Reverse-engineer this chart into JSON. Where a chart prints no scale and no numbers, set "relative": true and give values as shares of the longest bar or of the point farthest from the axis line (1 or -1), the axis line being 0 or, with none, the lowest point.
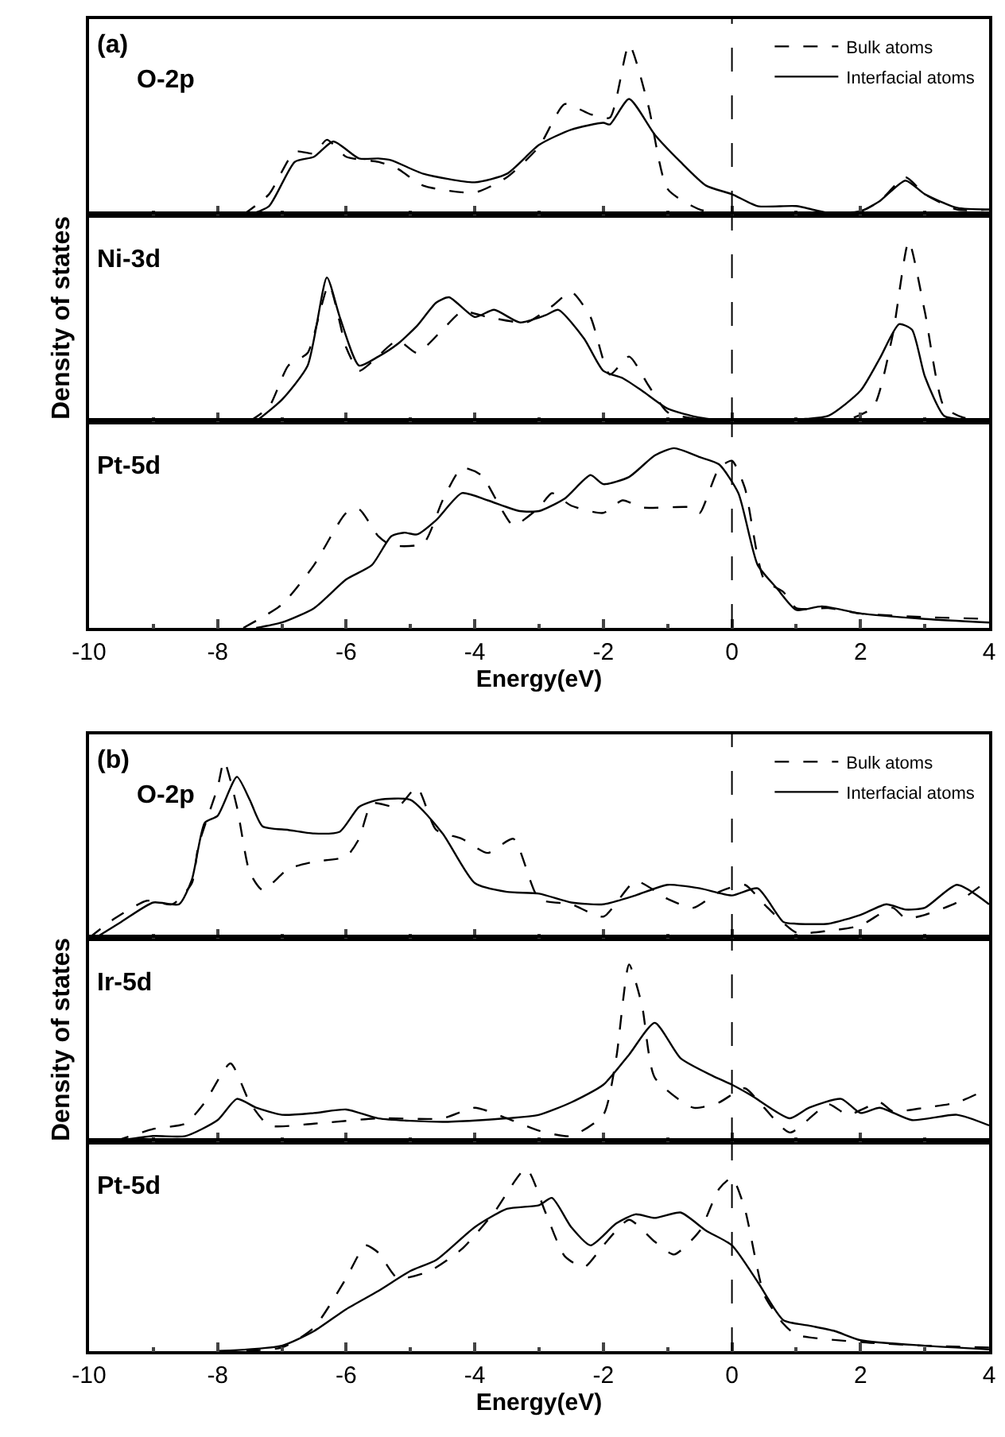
{
  "chart_data": [
    {
      "type": "line",
      "relative": true,
      "annotations": [
        "(a)",
        "O-2p"
      ],
      "xlim": [
        -10,
        4
      ],
      "xticks": [
        -10,
        -8,
        -6,
        -4,
        -2,
        0,
        2,
        4
      ],
      "tick_labels": false,
      "legend": "top right",
      "grid": false,
      "ref_lines": [
        {
          "axis": "x",
          "value": 0,
          "color": "#000000",
          "line_style": "dashed"
        }
      ],
      "series": [
        {
          "name": "Bulk atoms",
          "color": "#000000",
          "line_style": "dashed",
          "x": [
            -7.6,
            -7.2,
            -6.8,
            -6.5,
            -6.3,
            -6.0,
            -5.5,
            -5.2,
            -4.8,
            -4.0,
            -3.5,
            -3.0,
            -2.6,
            -2.2,
            -1.9,
            -1.6,
            -1.3,
            -1.0,
            -0.5,
            0,
            0.5,
            1,
            1.5,
            2,
            2.3,
            2.7,
            3.0,
            3.5,
            4
          ],
          "values": [
            0,
            0.12,
            0.37,
            0.36,
            0.44,
            0.34,
            0.31,
            0.27,
            0.17,
            0.13,
            0.22,
            0.4,
            0.65,
            0.59,
            0.57,
            1.0,
            0.64,
            0.15,
            0.03,
            0.0,
            0.0,
            0.01,
            0.01,
            0.02,
            0.08,
            0.22,
            0.12,
            0.03,
            0.03
          ]
        },
        {
          "name": "Interfacial atoms",
          "color": "#000000",
          "line_style": "solid",
          "x": [
            -7.5,
            -7.2,
            -6.8,
            -6.5,
            -6.2,
            -5.8,
            -5.5,
            -5.3,
            -4.8,
            -4.0,
            -3.5,
            -3.0,
            -2.5,
            -2.0,
            -1.9,
            -1.6,
            -1.2,
            -0.8,
            -0.4,
            0,
            0.4,
            1,
            1.5,
            2,
            2.3,
            2.7,
            3,
            3.5,
            4
          ],
          "values": [
            0,
            0.05,
            0.31,
            0.34,
            0.43,
            0.33,
            0.33,
            0.32,
            0.24,
            0.19,
            0.24,
            0.41,
            0.5,
            0.54,
            0.53,
            0.68,
            0.47,
            0.31,
            0.17,
            0.12,
            0.05,
            0.05,
            0.01,
            0.02,
            0.08,
            0.2,
            0.12,
            0.04,
            0.03
          ]
        }
      ]
    },
    {
      "type": "line",
      "relative": true,
      "annotations": [
        "Ni-3d"
      ],
      "ylabel": "Density of states",
      "xlim": [
        -10,
        4
      ],
      "xticks": [
        -10,
        -8,
        -6,
        -4,
        -2,
        0,
        2,
        4
      ],
      "tick_labels": false,
      "grid": false,
      "ref_lines": [
        {
          "axis": "x",
          "value": 0,
          "color": "#000000",
          "line_style": "dashed"
        }
      ],
      "series": [
        {
          "color": "#000000",
          "line_style": "dashed",
          "x": [
            -7.5,
            -7.2,
            -6.9,
            -6.6,
            -6.27,
            -6.0,
            -5.8,
            -5.6,
            -5.2,
            -4.9,
            -4.5,
            -4.2,
            -3.8,
            -3.2,
            -2.8,
            -2.5,
            -2.2,
            -1.9,
            -1.6,
            -1.3,
            -1.0,
            -0.5,
            0,
            1,
            1.8,
            2.2,
            2.5,
            2.75,
            3.0,
            3.3,
            3.6,
            4
          ],
          "values": [
            0,
            0.08,
            0.31,
            0.38,
            0.76,
            0.41,
            0.28,
            0.33,
            0.45,
            0.38,
            0.51,
            0.61,
            0.58,
            0.55,
            0.64,
            0.72,
            0.58,
            0.26,
            0.36,
            0.2,
            0.05,
            0.01,
            0.0,
            0.0,
            0.01,
            0.08,
            0.48,
            1.0,
            0.61,
            0.08,
            0.02,
            0.01
          ]
        },
        {
          "color": "#000000",
          "line_style": "solid",
          "x": [
            -7.4,
            -7.0,
            -6.6,
            -6.3,
            -6.1,
            -5.8,
            -5.5,
            -5.2,
            -4.9,
            -4.6,
            -4.4,
            -4.0,
            -3.7,
            -3.3,
            -2.9,
            -2.7,
            -2.3,
            -2.0,
            -1.7,
            -1.4,
            -1.0,
            -0.5,
            0,
            1,
            1.5,
            2.0,
            2.3,
            2.6,
            2.8,
            3.0,
            3.3,
            3.6,
            4
          ],
          "values": [
            0,
            0.12,
            0.31,
            0.8,
            0.58,
            0.31,
            0.36,
            0.43,
            0.53,
            0.66,
            0.69,
            0.58,
            0.62,
            0.55,
            0.59,
            0.62,
            0.46,
            0.28,
            0.24,
            0.17,
            0.07,
            0.02,
            0.0,
            0.01,
            0.03,
            0.17,
            0.35,
            0.54,
            0.51,
            0.25,
            0.03,
            0.01,
            0.01
          ]
        }
      ]
    },
    {
      "type": "line",
      "relative": true,
      "annotations": [
        "Pt-5d"
      ],
      "xlabel": "Energy(eV)",
      "xlim": [
        -10,
        4
      ],
      "xticks": [
        -10,
        -8,
        -6,
        -4,
        -2,
        0,
        2,
        4
      ],
      "grid": false,
      "ref_lines": [
        {
          "axis": "x",
          "value": 0,
          "color": "#000000",
          "line_style": "dashed"
        }
      ],
      "series": [
        {
          "color": "#000000",
          "line_style": "dashed",
          "x": [
            -7.6,
            -7.0,
            -6.5,
            -6.0,
            -5.8,
            -5.5,
            -5.3,
            -4.8,
            -4.5,
            -4.2,
            -3.9,
            -3.6,
            -3.4,
            -3.0,
            -2.8,
            -2.5,
            -2.0,
            -1.7,
            -1.4,
            -0.6,
            -0.5,
            -0.2,
            0,
            0.2,
            0.5,
            0.8,
            1.0,
            1.5,
            2.0,
            3,
            4
          ],
          "values": [
            0,
            0.13,
            0.35,
            0.64,
            0.66,
            0.51,
            0.46,
            0.47,
            0.71,
            0.89,
            0.85,
            0.67,
            0.57,
            0.67,
            0.75,
            0.68,
            0.64,
            0.71,
            0.67,
            0.67,
            0.64,
            0.89,
            0.93,
            0.78,
            0.27,
            0.2,
            0.11,
            0.11,
            0.08,
            0.06,
            0.05
          ]
        },
        {
          "color": "#000000",
          "line_style": "solid",
          "x": [
            -7.4,
            -7.0,
            -6.5,
            -6.0,
            -5.6,
            -5.3,
            -5.1,
            -4.9,
            -4.6,
            -4.2,
            -3.8,
            -3.3,
            -3.0,
            -2.6,
            -2.2,
            -2.0,
            -1.6,
            -1.2,
            -0.9,
            -0.5,
            -0.2,
            0.1,
            0.4,
            0.7,
            1.0,
            1.4,
            2.0,
            3,
            4
          ],
          "values": [
            0,
            0.03,
            0.11,
            0.27,
            0.35,
            0.51,
            0.53,
            0.52,
            0.6,
            0.75,
            0.71,
            0.65,
            0.65,
            0.72,
            0.85,
            0.8,
            0.84,
            0.96,
            1.0,
            0.95,
            0.91,
            0.75,
            0.35,
            0.22,
            0.1,
            0.12,
            0.08,
            0.05,
            0.03
          ]
        }
      ]
    },
    {
      "type": "line",
      "relative": true,
      "annotations": [
        "(b)",
        "O-2p"
      ],
      "xlim": [
        -10,
        4
      ],
      "xticks": [
        -10,
        -8,
        -6,
        -4,
        -2,
        0,
        2,
        4
      ],
      "tick_labels": false,
      "legend": "top right",
      "grid": false,
      "ref_lines": [
        {
          "axis": "x",
          "value": 0,
          "color": "#000000",
          "line_style": "dashed"
        }
      ],
      "series": [
        {
          "name": "Bulk atoms",
          "color": "#000000",
          "line_style": "dashed",
          "x": [
            -10,
            -9.6,
            -9.1,
            -8.7,
            -8.4,
            -8.3,
            -8.0,
            -7.9,
            -7.7,
            -7.5,
            -7.3,
            -6.9,
            -6.5,
            -6.0,
            -5.8,
            -5.6,
            -5.2,
            -4.9,
            -4.6,
            -4.2,
            -3.8,
            -3.4,
            -3.0,
            -2.5,
            -2.0,
            -1.5,
            -1.0,
            -0.6,
            -0.2,
            0.2,
            0.5,
            1.0,
            1.5,
            2.0,
            2.5,
            2.7,
            3.0,
            3.5,
            4.0
          ],
          "values": [
            0,
            0.11,
            0.21,
            0.19,
            0.31,
            0.52,
            0.85,
            1.0,
            0.74,
            0.37,
            0.27,
            0.39,
            0.43,
            0.46,
            0.56,
            0.76,
            0.74,
            0.85,
            0.61,
            0.56,
            0.48,
            0.56,
            0.22,
            0.19,
            0.12,
            0.32,
            0.22,
            0.17,
            0.26,
            0.3,
            0.19,
            0.03,
            0.04,
            0.07,
            0.17,
            0.11,
            0.13,
            0.2,
            0.33
          ]
        },
        {
          "name": "Interfacial atoms",
          "color": "#000000",
          "line_style": "solid",
          "x": [
            -9.9,
            -9.5,
            -9.0,
            -8.6,
            -8.4,
            -8.2,
            -8.0,
            -7.7,
            -7.5,
            -7.3,
            -6.9,
            -6.5,
            -6.1,
            -5.8,
            -5.5,
            -5.0,
            -4.5,
            -4.0,
            -3.5,
            -3.0,
            -2.5,
            -2.0,
            -1.5,
            -1.0,
            -0.5,
            0,
            0.4,
            0.8,
            1.0,
            1.5,
            2.0,
            2.4,
            2.7,
            3.0,
            3.5,
            4.0
          ],
          "values": [
            0,
            0.09,
            0.2,
            0.19,
            0.33,
            0.65,
            0.69,
            0.91,
            0.78,
            0.63,
            0.61,
            0.59,
            0.6,
            0.74,
            0.78,
            0.78,
            0.59,
            0.31,
            0.26,
            0.25,
            0.2,
            0.19,
            0.24,
            0.3,
            0.28,
            0.24,
            0.28,
            0.09,
            0.08,
            0.08,
            0.13,
            0.19,
            0.16,
            0.17,
            0.3,
            0.19
          ]
        }
      ]
    },
    {
      "type": "line",
      "relative": true,
      "annotations": [
        "Ir-5d"
      ],
      "ylabel": "Density of states",
      "xlim": [
        -10,
        4
      ],
      "xticks": [
        -10,
        -8,
        -6,
        -4,
        -2,
        0,
        2,
        4
      ],
      "tick_labels": false,
      "grid": false,
      "ref_lines": [
        {
          "axis": "x",
          "value": 0,
          "color": "#000000",
          "line_style": "dashed"
        }
      ],
      "series": [
        {
          "color": "#000000",
          "line_style": "dashed",
          "x": [
            -9.6,
            -9.0,
            -8.5,
            -8.2,
            -7.8,
            -7.5,
            -7.2,
            -6.5,
            -5.5,
            -4.5,
            -4.0,
            -3.5,
            -3.0,
            -2.5,
            -2.0,
            -1.8,
            -1.6,
            -1.4,
            -1.2,
            -0.6,
            -0.2,
            0.2,
            0.5,
            0.9,
            1.5,
            1.8,
            2.3,
            2.5,
            3.0,
            3.5,
            4.0
          ],
          "values": [
            0,
            0.07,
            0.1,
            0.22,
            0.44,
            0.22,
            0.09,
            0.1,
            0.13,
            0.13,
            0.19,
            0.13,
            0.06,
            0.03,
            0.15,
            0.47,
            1.0,
            0.77,
            0.36,
            0.19,
            0.22,
            0.3,
            0.19,
            0.05,
            0.21,
            0.15,
            0.22,
            0.17,
            0.19,
            0.22,
            0.3
          ]
        },
        {
          "color": "#000000",
          "line_style": "solid",
          "x": [
            -9.6,
            -9.0,
            -8.5,
            -8.0,
            -7.7,
            -7.4,
            -7.0,
            -6.5,
            -6.0,
            -5.5,
            -4.5,
            -3.5,
            -3.0,
            -2.5,
            -2.0,
            -1.6,
            -1.2,
            -0.8,
            -0.3,
            0,
            0.3,
            0.9,
            1.2,
            1.7,
            2.0,
            2.3,
            2.8,
            3.5,
            4.0
          ],
          "values": [
            0,
            0.03,
            0.03,
            0.12,
            0.24,
            0.19,
            0.15,
            0.16,
            0.18,
            0.13,
            0.11,
            0.13,
            0.15,
            0.22,
            0.32,
            0.49,
            0.67,
            0.47,
            0.37,
            0.32,
            0.26,
            0.13,
            0.19,
            0.24,
            0.16,
            0.19,
            0.12,
            0.15,
            0.09
          ]
        }
      ]
    },
    {
      "type": "line",
      "relative": true,
      "annotations": [
        "Pt-5d"
      ],
      "xlabel": "Energy(eV)",
      "xlim": [
        -10,
        4
      ],
      "xticks": [
        -10,
        -8,
        -6,
        -4,
        -2,
        0,
        2,
        4
      ],
      "grid": false,
      "ref_lines": [
        {
          "axis": "x",
          "value": 0,
          "color": "#000000",
          "line_style": "dashed"
        }
      ],
      "series": [
        {
          "color": "#000000",
          "line_style": "dashed",
          "x": [
            -8,
            -7,
            -6.5,
            -6.0,
            -5.7,
            -5.5,
            -5.2,
            -4.7,
            -4.2,
            -3.7,
            -3.2,
            -2.9,
            -2.6,
            -2.3,
            -2.0,
            -1.6,
            -1.2,
            -0.9,
            -0.5,
            -0.2,
            0,
            0.2,
            0.5,
            0.8,
            1.0,
            2,
            3,
            4
          ],
          "values": [
            0,
            0.02,
            0.13,
            0.4,
            0.58,
            0.54,
            0.4,
            0.44,
            0.56,
            0.76,
            1.0,
            0.76,
            0.52,
            0.46,
            0.58,
            0.72,
            0.6,
            0.53,
            0.66,
            0.89,
            0.95,
            0.78,
            0.31,
            0.15,
            0.09,
            0.05,
            0.03,
            0.02
          ]
        },
        {
          "color": "#000000",
          "line_style": "solid",
          "x": [
            -8,
            -7,
            -6.5,
            -6.0,
            -5.5,
            -5.0,
            -4.6,
            -4.0,
            -3.5,
            -3.0,
            -2.8,
            -2.5,
            -2.2,
            -1.8,
            -1.5,
            -1.2,
            -0.8,
            -0.4,
            0,
            0.4,
            0.8,
            1.2,
            1.6,
            2,
            3,
            4
          ],
          "values": [
            0,
            0.03,
            0.11,
            0.23,
            0.33,
            0.44,
            0.5,
            0.68,
            0.78,
            0.8,
            0.84,
            0.68,
            0.58,
            0.7,
            0.75,
            0.73,
            0.76,
            0.66,
            0.58,
            0.38,
            0.17,
            0.14,
            0.11,
            0.06,
            0.03,
            0.01
          ]
        }
      ]
    }
  ]
}
